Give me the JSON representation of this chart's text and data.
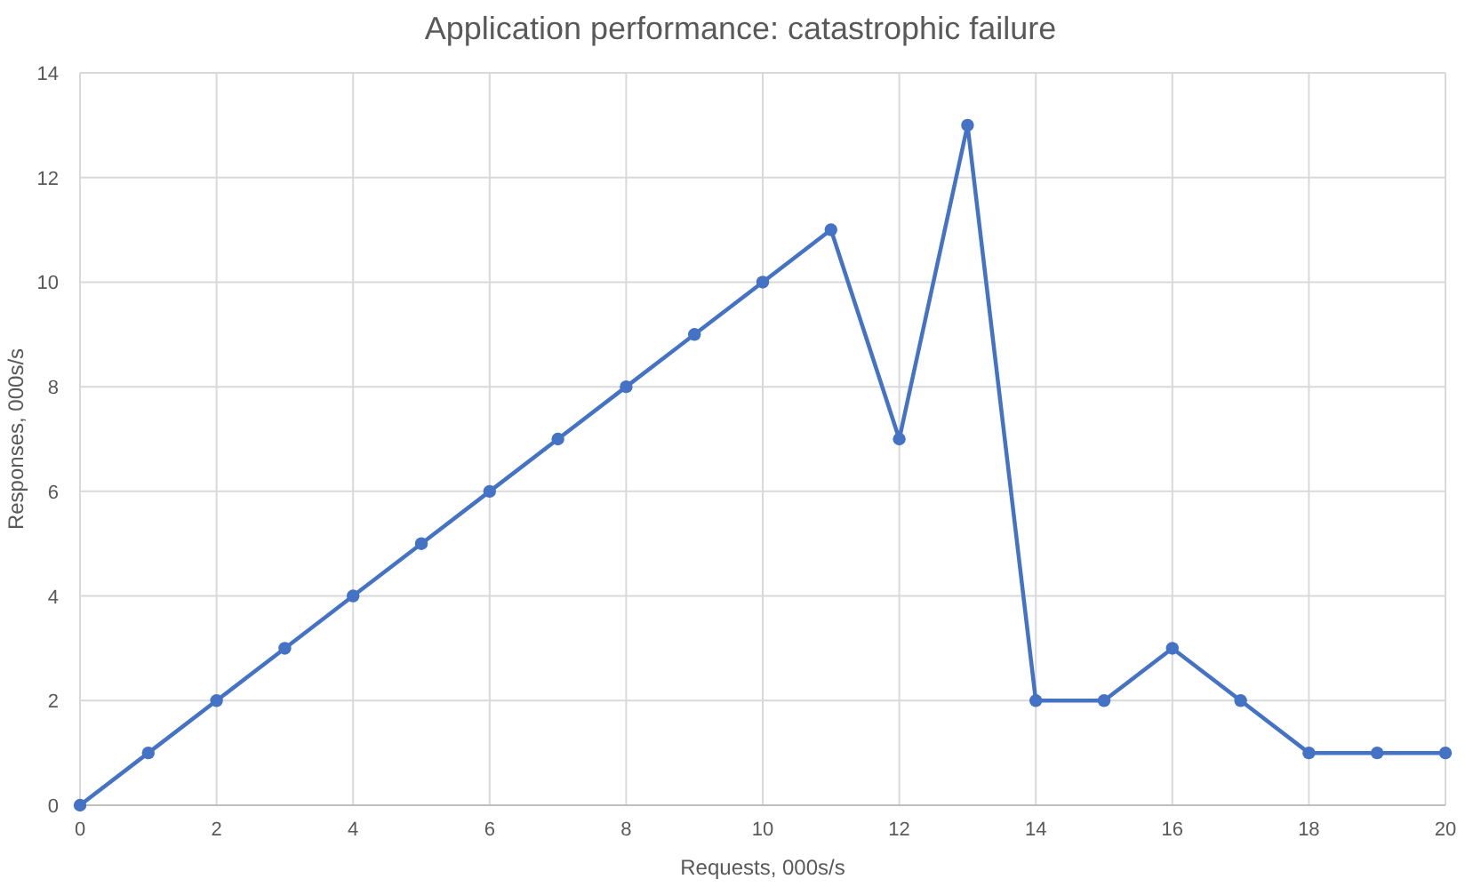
{
  "chart_data": {
    "type": "line",
    "title": "Application performance: catastrophic failure",
    "xlabel": "Requests, 000s/s",
    "ylabel": "Responses, 000s/s",
    "x": [
      0,
      1,
      2,
      3,
      4,
      5,
      6,
      7,
      8,
      9,
      10,
      11,
      12,
      13,
      14,
      15,
      16,
      17,
      18,
      19,
      20
    ],
    "series": [
      {
        "color": "#4472c4",
        "values": [
          0,
          1,
          2,
          3,
          4,
          5,
          6,
          7,
          8,
          9,
          10,
          11,
          7,
          13,
          2,
          2,
          3,
          2,
          1,
          1,
          1
        ]
      }
    ],
    "xlim": [
      0,
      20
    ],
    "xticks": [
      0,
      2,
      4,
      6,
      8,
      10,
      12,
      14,
      16,
      18,
      20
    ],
    "ylim": [
      0,
      14
    ],
    "yticks": [
      0,
      2,
      4,
      6,
      8,
      10,
      12,
      14
    ],
    "grid": true,
    "marker": "circle",
    "line_style": "solid"
  }
}
